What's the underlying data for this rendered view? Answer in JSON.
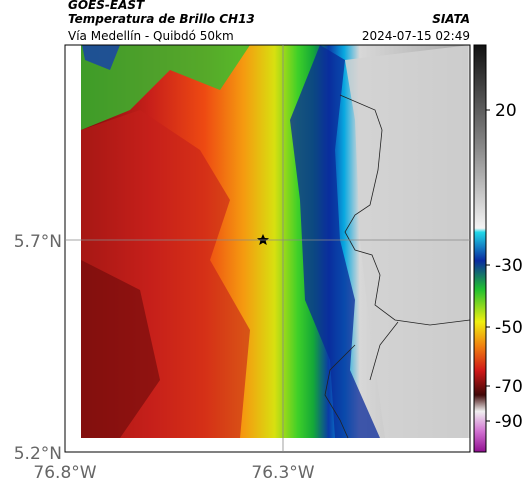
{
  "header": {
    "satellite": "GOES-EAST",
    "product": "Temperatura de Brillo CH13",
    "route": "Vía Medellín - Quibdó 50km",
    "source": "SIATA",
    "datetime": "2024-07-15 02:49"
  },
  "axes": {
    "lat_labels": [
      "5.7°N",
      "5.2°N"
    ],
    "lon_labels": [
      "76.8°W",
      "76.3°W"
    ]
  },
  "colorbar": {
    "ticks": [
      20,
      -30,
      -50,
      -70,
      -90
    ]
  }
}
